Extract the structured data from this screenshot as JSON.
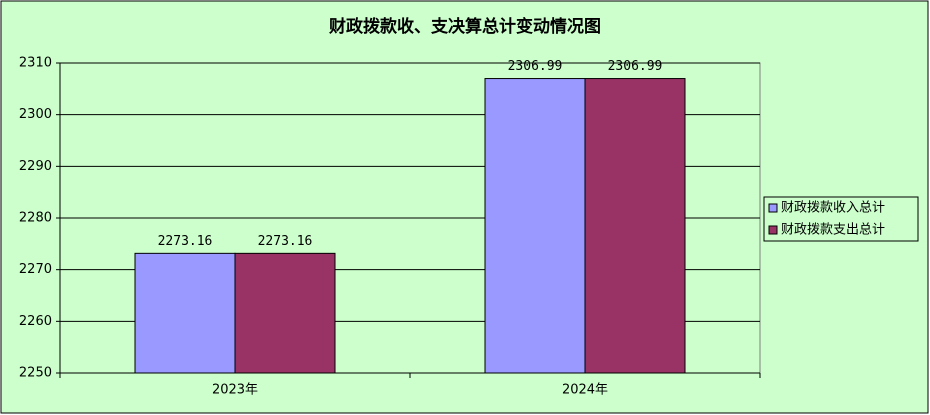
{
  "chart_data": {
    "type": "bar",
    "title": "财政拨款收、支决算总计变动情况图",
    "categories": [
      "2023年",
      "2024年"
    ],
    "series": [
      {
        "name": "财政拨款收入总计",
        "color": "#9999ff",
        "values": [
          2273.16,
          2306.99
        ]
      },
      {
        "name": "财政拨款支出总计",
        "color": "#993366",
        "values": [
          2273.16,
          2306.99
        ]
      }
    ],
    "ylim": [
      2250,
      2310
    ],
    "yticks": [
      2250,
      2260,
      2270,
      2280,
      2290,
      2300,
      2310
    ],
    "grid": true,
    "legend": "right"
  }
}
